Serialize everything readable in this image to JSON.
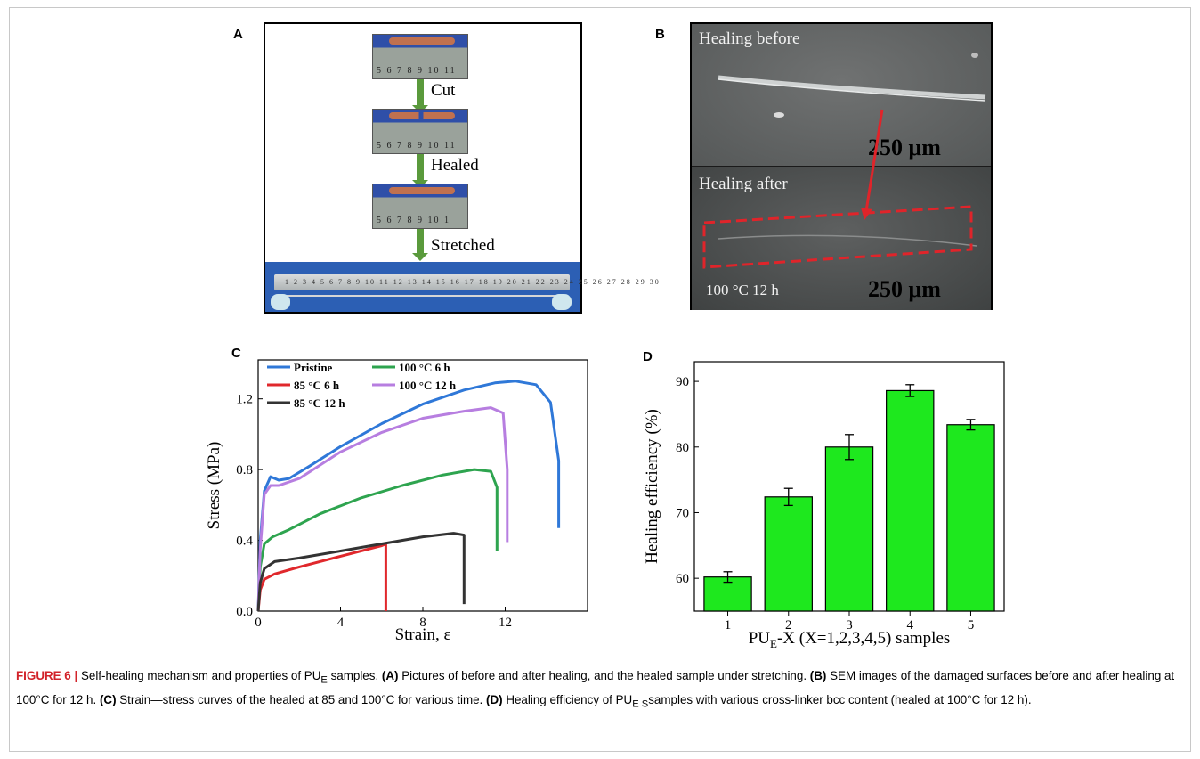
{
  "panel_labels": {
    "a": "A",
    "b": "B",
    "c": "C",
    "d": "D"
  },
  "panelA": {
    "steps": [
      "Cut",
      "Healed",
      "Stretched"
    ],
    "ruler_numbers": [
      "5 6 7 8 9 10 11",
      "5 6 7 8 9 10 11",
      "5 6 7 8 9 10 1"
    ],
    "long_ruler": "1 2 3 4 5 6 7 8 9 10 11 12 13 14 15 16 17 18 19 20 21 22 23 24 25 26 27 28 29 30"
  },
  "panelB": {
    "top_label": "Healing before",
    "bottom_label": "Healing after",
    "condition": "100 °C  12 h",
    "scale_top": "250 μm",
    "scale_bottom": "250 μm"
  },
  "chart_data": [
    {
      "type": "line",
      "xlabel": "Strain, ε",
      "ylabel": "Stress (MPa)",
      "xlim": [
        0,
        16
      ],
      "ylim": [
        0,
        1.42
      ],
      "xticks": [
        0,
        4,
        8,
        12
      ],
      "yticks": [
        0.0,
        0.4,
        0.8,
        1.2
      ],
      "series": [
        {
          "name": "Pristine",
          "color": "#2f78d8",
          "x": [
            0,
            0.1,
            0.3,
            0.6,
            1.0,
            1.5,
            2.5,
            4,
            6,
            8,
            10,
            11.5,
            12.5,
            13.5,
            14.2,
            14.6,
            14.6
          ],
          "y": [
            0,
            0.4,
            0.68,
            0.76,
            0.74,
            0.75,
            0.82,
            0.93,
            1.06,
            1.17,
            1.25,
            1.29,
            1.3,
            1.28,
            1.18,
            0.85,
            0.47
          ]
        },
        {
          "name": "100 °C 6 h",
          "color": "#2ea44f",
          "x": [
            0,
            0.1,
            0.3,
            0.7,
            1.5,
            3,
            5,
            7,
            9,
            10.5,
            11.3,
            11.6,
            11.6
          ],
          "y": [
            0,
            0.25,
            0.38,
            0.42,
            0.46,
            0.55,
            0.64,
            0.71,
            0.77,
            0.8,
            0.79,
            0.7,
            0.34
          ]
        },
        {
          "name": "85 °C 6 h",
          "color": "#e0282c",
          "x": [
            0,
            0.1,
            0.3,
            0.8,
            2,
            4,
            6,
            6.2,
            6.2
          ],
          "y": [
            0,
            0.12,
            0.18,
            0.21,
            0.25,
            0.31,
            0.37,
            0.38,
            0.0
          ]
        },
        {
          "name": "100 °C 12 h",
          "color": "#b77ee0",
          "x": [
            0,
            0.1,
            0.3,
            0.6,
            1.0,
            2,
            4,
            6,
            8,
            10,
            11.3,
            11.9,
            12.1,
            12.1
          ],
          "y": [
            0,
            0.35,
            0.66,
            0.71,
            0.71,
            0.75,
            0.9,
            1.01,
            1.09,
            1.13,
            1.15,
            1.12,
            0.8,
            0.39
          ]
        },
        {
          "name": "85 °C 12 h",
          "color": "#333333",
          "x": [
            0,
            0.1,
            0.3,
            0.8,
            2,
            4,
            6,
            8,
            9.5,
            10.0,
            10.0
          ],
          "y": [
            0,
            0.16,
            0.24,
            0.28,
            0.3,
            0.34,
            0.38,
            0.42,
            0.44,
            0.43,
            0.04
          ]
        }
      ]
    },
    {
      "type": "bar",
      "xlabel": "PU",
      "xlabel_sub": "E",
      "xlabel_rest": "-X (X=1,2,3,4,5) samples",
      "ylabel": "Healing efficiency (%)",
      "categories": [
        "1",
        "2",
        "3",
        "4",
        "5"
      ],
      "values": [
        60.2,
        72.4,
        80.0,
        88.6,
        83.4
      ],
      "errors": [
        0.8,
        1.3,
        1.9,
        0.9,
        0.8
      ],
      "ylim": [
        55,
        93
      ],
      "yticks": [
        60,
        70,
        80,
        90
      ],
      "color": "#1ee81e"
    }
  ],
  "caption": {
    "fig": "FIGURE 6 |",
    "t1": " Self-healing mechanism and properties of PU",
    "s1": "E",
    "t2": " samples. ",
    "bA": "(A)",
    "t3": " Pictures of before and after healing, and the healed sample under stretching. ",
    "bB": "(B)",
    "t4": " SEM images of the damaged surfaces before and after healing at 100°C for 12 h. ",
    "bC": "(C)",
    "t5": " Strain—stress curves of the healed at 85 and 100°C for various time. ",
    "bD": "(D)",
    "t6": " Healing efficiency of PU",
    "s2": "E S",
    "t7": "samples with various cross-linker bcc content (healed at 100°C for 12 h)."
  }
}
